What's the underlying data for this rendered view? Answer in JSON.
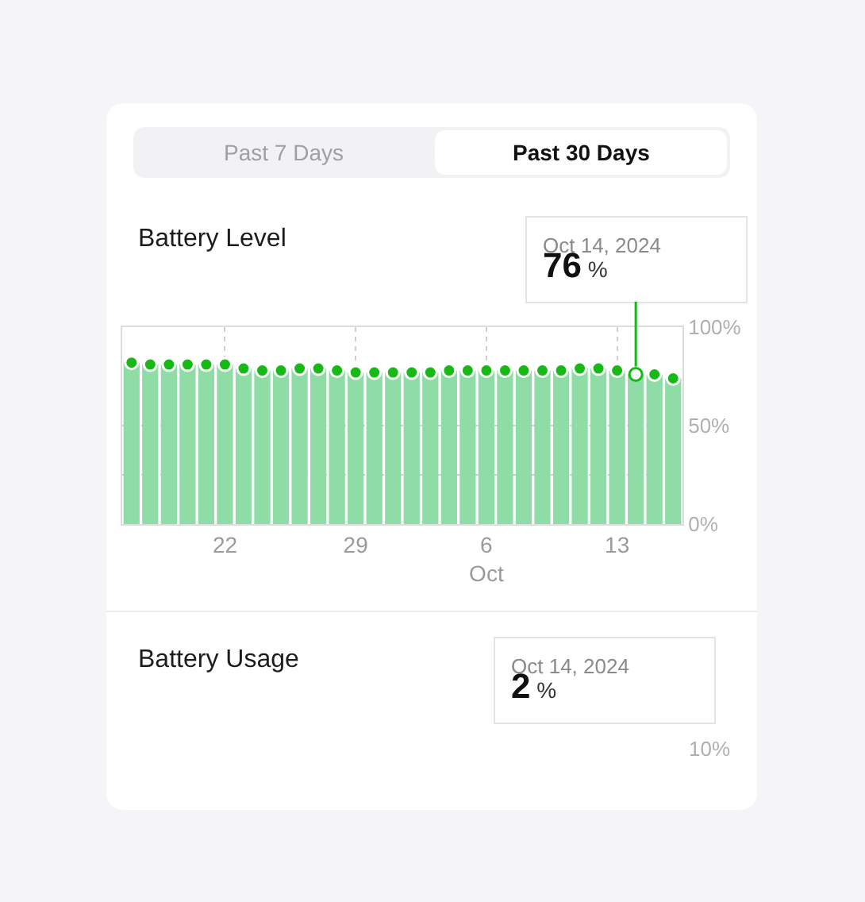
{
  "chart_data": [
    {
      "type": "bar",
      "title": "Battery Level",
      "x": [
        "2024-09-17",
        "2024-09-18",
        "2024-09-19",
        "2024-09-20",
        "2024-09-21",
        "2024-09-22",
        "2024-09-23",
        "2024-09-24",
        "2024-09-25",
        "2024-09-26",
        "2024-09-27",
        "2024-09-28",
        "2024-09-29",
        "2024-09-30",
        "2024-10-01",
        "2024-10-02",
        "2024-10-03",
        "2024-10-04",
        "2024-10-05",
        "2024-10-06",
        "2024-10-07",
        "2024-10-08",
        "2024-10-09",
        "2024-10-10",
        "2024-10-11",
        "2024-10-12",
        "2024-10-13",
        "2024-10-14",
        "2024-10-15",
        "2024-10-16"
      ],
      "series": [
        {
          "type": "bar",
          "color": "#8fdca6",
          "values": [
            82,
            81,
            81,
            81,
            81,
            81,
            79,
            78,
            78,
            79,
            79,
            78,
            77,
            77,
            77,
            77,
            77,
            78,
            78,
            78,
            78,
            78,
            78,
            78,
            79,
            79,
            78,
            76,
            76,
            74
          ]
        },
        {
          "type": "scatter",
          "color": "#17b917",
          "colors": [
            "#17b917",
            "#17b917",
            "#17b917",
            "#17b917",
            "#17b917",
            "#17b917",
            "#17b917",
            "#17b917",
            "#17b917",
            "#17b917",
            "#17b917",
            "#17b917",
            "#17b917",
            "#17b917",
            "#17b917",
            "#17b917",
            "#17b917",
            "#17b917",
            "#17b917",
            "#17b917",
            "#17b917",
            "#17b917",
            "#17b917",
            "#17b917",
            "#17b917",
            "#17b917",
            "#17b917",
            "#ffffff",
            "#17b917",
            "#17b917"
          ],
          "values": [
            82,
            81,
            81,
            81,
            81,
            81,
            79,
            78,
            78,
            79,
            79,
            78,
            77,
            77,
            77,
            77,
            77,
            78,
            78,
            78,
            78,
            78,
            78,
            78,
            79,
            79,
            78,
            76,
            76,
            74
          ]
        }
      ],
      "marker": "circle",
      "xlim": [
        "2024-09-16T12:00",
        "2024-10-16T12:00"
      ],
      "xticks": [
        {
          "value": "2024-09-22",
          "label": "22"
        },
        {
          "value": "2024-09-29",
          "label": "29"
        },
        {
          "value": "2024-10-06",
          "label": "6\nOct"
        },
        {
          "value": "2024-10-13",
          "label": "13"
        }
      ],
      "ylim": [
        0,
        100
      ],
      "yticks": [
        {
          "value": 0,
          "label": "0%"
        },
        {
          "value": 25,
          "label": null
        },
        {
          "value": 50,
          "label": "50%"
        },
        {
          "value": 100,
          "label": "100%"
        }
      ],
      "grid": true,
      "annotations": [
        "Past 7 Days",
        "Past 30 Days",
        {
          "text": "Oct 14, 2024\n76 %",
          "x": "2024-10-14",
          "y": 76
        }
      ]
    },
    {
      "type": "other",
      "title": "Battery Usage",
      "annotations": [
        "Oct 14, 2024\n2 %",
        "10%"
      ]
    }
  ]
}
